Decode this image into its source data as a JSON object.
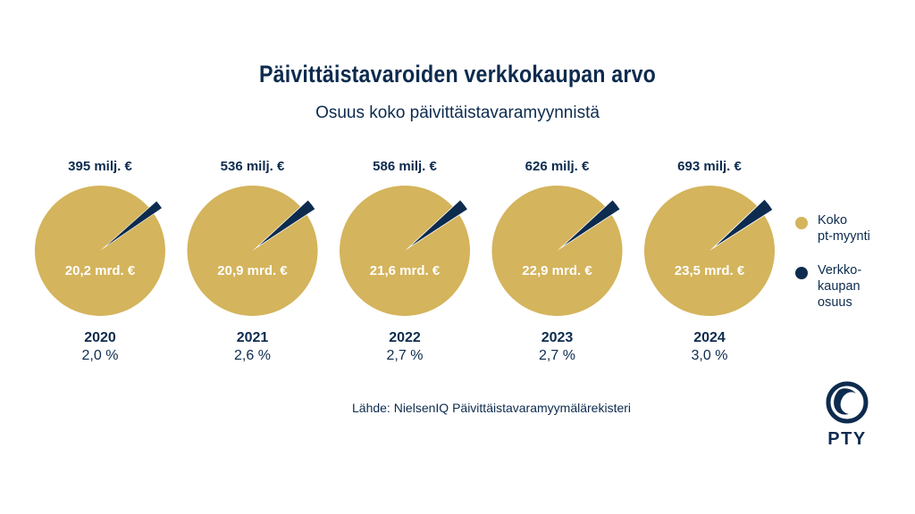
{
  "title": "Päivittäistavaroiden verkkokaupan arvo",
  "subtitle": "Osuus koko päivittäistavaramyynnistä",
  "source": "Lähde: NielsenIQ Päivittäistavaramyymälärekisteri",
  "logo_text": "PTY",
  "colors": {
    "total": "#d4b45c",
    "online": "#0d2b4e",
    "text": "#0d2b4e"
  },
  "legend": [
    {
      "label": "Koko\npt-myynti",
      "color": "#d4b45c"
    },
    {
      "label": "Verkko-\nkaupan\nosuus",
      "color": "#0d2b4e"
    }
  ],
  "chart_data": {
    "type": "pie",
    "series": [
      {
        "name": "Koko pt-myynti"
      },
      {
        "name": "Verkkokaupan osuus"
      }
    ],
    "pies": [
      {
        "year": "2020",
        "total_label": "20,2 mrd. €",
        "online_label": "395 milj. €",
        "share_label": "2,0 %",
        "share": 2.0
      },
      {
        "year": "2021",
        "total_label": "20,9 mrd. €",
        "online_label": "536 milj. €",
        "share_label": "2,6 %",
        "share": 2.6
      },
      {
        "year": "2022",
        "total_label": "21,6 mrd. €",
        "online_label": "586 milj. €",
        "share_label": "2,7 %",
        "share": 2.7
      },
      {
        "year": "2023",
        "total_label": "22,9 mrd. €",
        "online_label": "626 milj. €",
        "share_label": "2,7 %",
        "share": 2.7
      },
      {
        "year": "2024",
        "total_label": "23,5 mrd. €",
        "online_label": "693 milj. €",
        "share_label": "3,0 %",
        "share": 3.0
      }
    ]
  }
}
